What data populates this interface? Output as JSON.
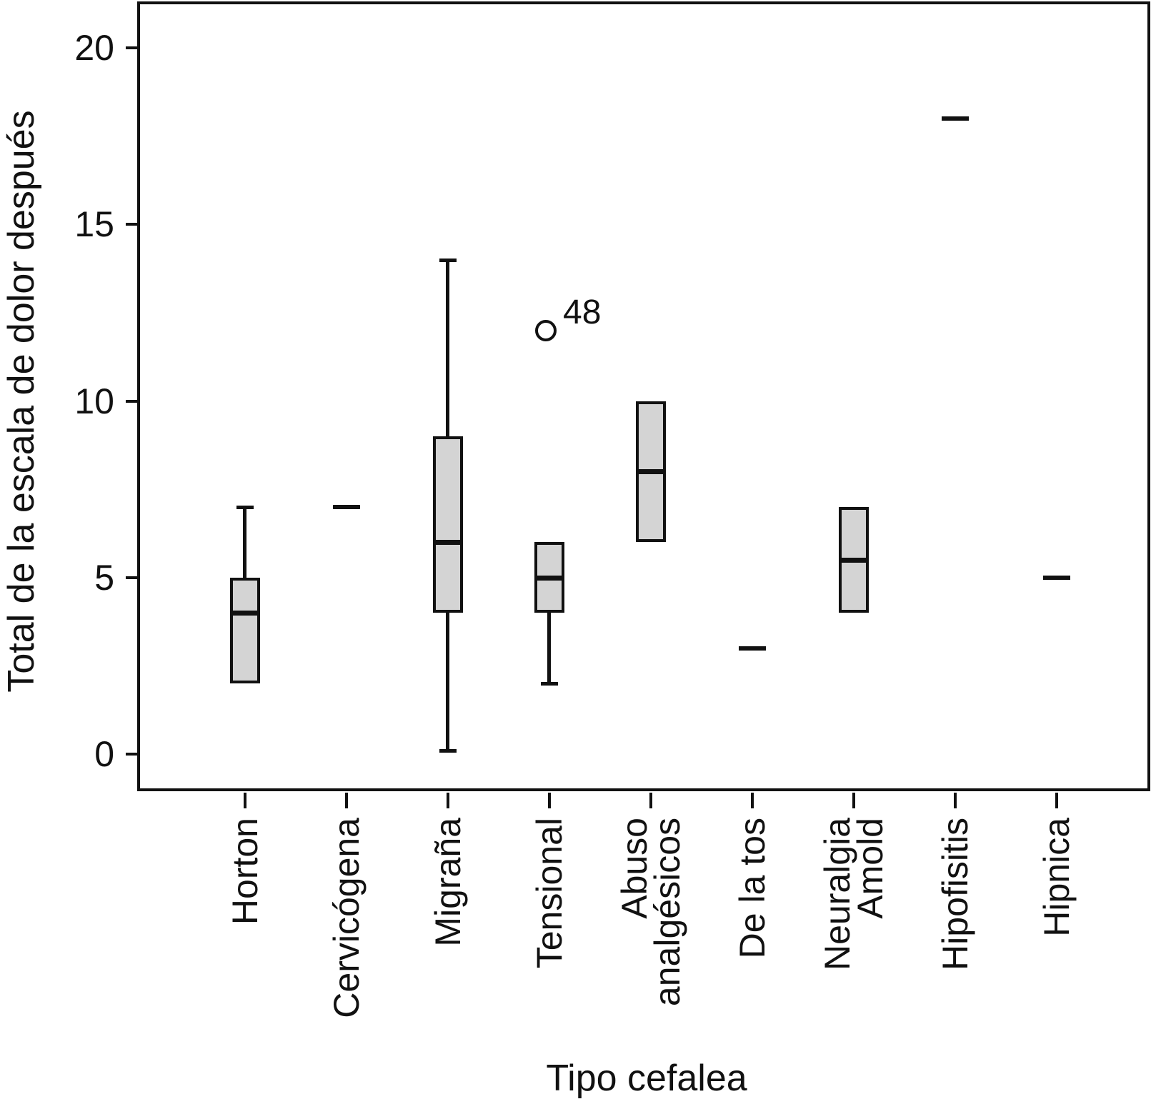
{
  "chart_data": {
    "type": "boxplot",
    "title": "",
    "xlabel": "Tipo cefalea",
    "ylabel": "Total de la escala de dolor después",
    "yticks": [
      0,
      5,
      10,
      15,
      20
    ],
    "ylim": [
      -1.05,
      21.3
    ],
    "grid": false,
    "legend": "none",
    "box_fill_color": "#d4d4d4",
    "line_color": "#111111",
    "categories": [
      "Horton",
      "Cervicógena",
      "Migraña",
      "Tensional",
      "Abuso analgésicos",
      "De la tos",
      "Neuralgia Amold",
      "Hipofisitis",
      "Hipnica"
    ],
    "boxes": [
      {
        "category": "Horton",
        "label_lines": [
          "Horton"
        ],
        "q1": 2,
        "median": 4,
        "q3": 5,
        "whisker_low": null,
        "whisker_high": 7,
        "single_value": null,
        "outliers": []
      },
      {
        "category": "Cervicógena",
        "label_lines": [
          "Cervicógena"
        ],
        "q1": null,
        "median": 7,
        "q3": null,
        "whisker_low": null,
        "whisker_high": null,
        "single_value": 7,
        "outliers": []
      },
      {
        "category": "Migraña",
        "label_lines": [
          "Migraña"
        ],
        "q1": 4,
        "median": 6,
        "q3": 9,
        "whisker_low": 0.1,
        "whisker_high": 14,
        "single_value": null,
        "outliers": []
      },
      {
        "category": "Tensional",
        "label_lines": [
          "Tensional"
        ],
        "q1": 4,
        "median": 5,
        "q3": 6,
        "whisker_low": 2,
        "whisker_high": null,
        "single_value": null,
        "outliers": [
          {
            "value": 12,
            "label": "48"
          }
        ]
      },
      {
        "category": "Abuso analgésicos",
        "label_lines": [
          "Abuso",
          "analgésicos"
        ],
        "q1": 6,
        "median": 8,
        "q3": 10,
        "whisker_low": null,
        "whisker_high": null,
        "single_value": null,
        "outliers": []
      },
      {
        "category": "De la tos",
        "label_lines": [
          "De la tos"
        ],
        "q1": null,
        "median": 3,
        "q3": null,
        "whisker_low": null,
        "whisker_high": null,
        "single_value": 3,
        "outliers": []
      },
      {
        "category": "Neuralgia Amold",
        "label_lines": [
          "Neuralgia",
          "Amold"
        ],
        "q1": 4,
        "median": 5.5,
        "q3": 7,
        "whisker_low": null,
        "whisker_high": null,
        "single_value": null,
        "outliers": []
      },
      {
        "category": "Hipofisitis",
        "label_lines": [
          "Hipofisitis"
        ],
        "q1": null,
        "median": 18,
        "q3": null,
        "whisker_low": null,
        "whisker_high": null,
        "single_value": 18,
        "outliers": []
      },
      {
        "category": "Hipnica",
        "label_lines": [
          "Hipnica"
        ],
        "q1": null,
        "median": 5,
        "q3": null,
        "whisker_low": null,
        "whisker_high": null,
        "single_value": 5,
        "outliers": []
      }
    ]
  }
}
